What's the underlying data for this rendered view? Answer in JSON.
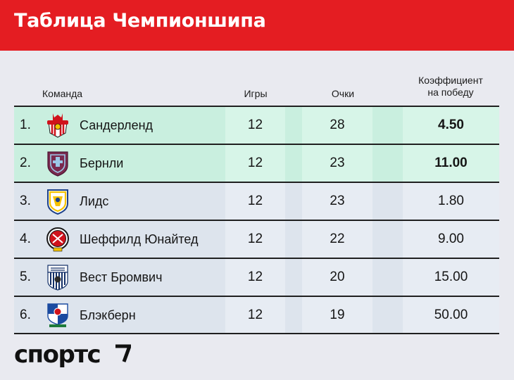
{
  "header": {
    "title": "Таблица Чемпионшипа"
  },
  "columns": {
    "team": "Команда",
    "games": "Игры",
    "points": "Очки",
    "odds_line1": "Коэффициент",
    "odds_line2": "на победу"
  },
  "rows": [
    {
      "rank": "1.",
      "team": "Сандерленд",
      "logo": "sunderland-crest-icon",
      "games": "12",
      "points": "28",
      "odds": "4.50",
      "highlight": true
    },
    {
      "rank": "2.",
      "team": "Бернли",
      "logo": "burnley-crest-icon",
      "games": "12",
      "points": "23",
      "odds": "11.00",
      "highlight": true
    },
    {
      "rank": "3.",
      "team": "Лидс",
      "logo": "leeds-crest-icon",
      "games": "12",
      "points": "23",
      "odds": "1.80",
      "highlight": false
    },
    {
      "rank": "4.",
      "team": "Шеффилд Юнайтед",
      "logo": "sheffield-united-crest-icon",
      "games": "12",
      "points": "22",
      "odds": "9.00",
      "highlight": false
    },
    {
      "rank": "5.",
      "team": "Вест Бромвич",
      "logo": "west-brom-crest-icon",
      "games": "12",
      "points": "20",
      "odds": "15.00",
      "highlight": false
    },
    {
      "rank": "6.",
      "team": "Блэкберн",
      "logo": "blackburn-crest-icon",
      "games": "12",
      "points": "19",
      "odds": "50.00",
      "highlight": false
    }
  ],
  "footer": {
    "brand": "спортс"
  },
  "colors": {
    "header": "#e41d22",
    "promo_row": "#c9efdf",
    "regular_row": "#dde4ed",
    "background": "#e9eaf0"
  }
}
